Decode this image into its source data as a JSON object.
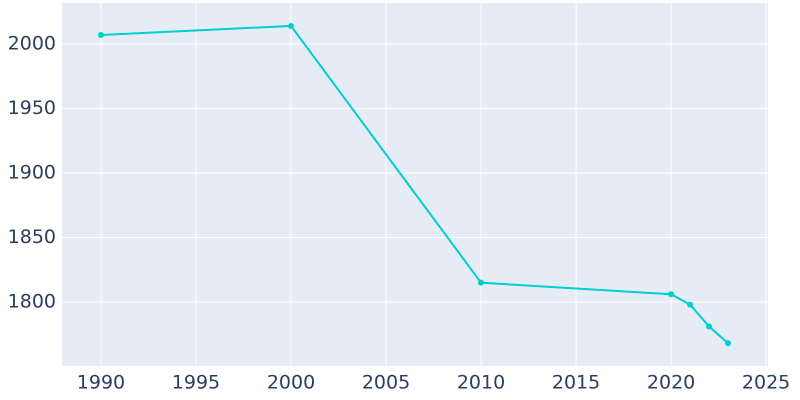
{
  "chart_data": {
    "type": "line",
    "x": [
      1990,
      2000,
      2010,
      2020,
      2021,
      2022,
      2023
    ],
    "series": [
      {
        "color": "#00CED1",
        "values": [
          2007,
          2014,
          1815,
          1806,
          1798,
          1781,
          1768
        ]
      }
    ],
    "xlim": [
      1987.95,
      2025.1
    ],
    "xticks": [
      1990,
      1995,
      2000,
      2005,
      2010,
      2015,
      2020,
      2025
    ],
    "ylim": [
      1750.4,
      2031.8
    ],
    "yticks": [
      1800,
      1850,
      1900,
      1950,
      2000
    ],
    "grid": true
  }
}
